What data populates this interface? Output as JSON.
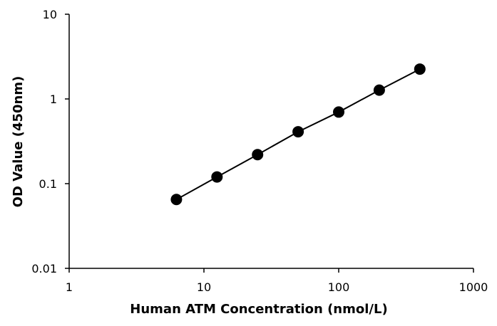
{
  "chart_data": {
    "type": "scatter",
    "title": "",
    "xlabel": "Human ATM Concentration  (nmol/L)",
    "ylabel": "OD Value (450nm)",
    "x_scale": "log",
    "y_scale": "log",
    "xlim": [
      1,
      1000
    ],
    "ylim": [
      0.01,
      10
    ],
    "x_ticks": [
      1,
      10,
      100,
      1000
    ],
    "x_tick_labels": [
      "1",
      "10",
      "100",
      "1000"
    ],
    "y_ticks": [
      0.01,
      0.1,
      1,
      10
    ],
    "y_tick_labels": [
      "0.01",
      "0.1",
      "1",
      "10"
    ],
    "grid": false,
    "legend": "none",
    "series": [
      {
        "x": [
          6.25,
          12.5,
          25,
          50,
          100,
          200,
          400
        ],
        "y": [
          0.065,
          0.12,
          0.22,
          0.41,
          0.7,
          1.27,
          2.25
        ],
        "marker": "circle",
        "line": true,
        "color": "#000000"
      }
    ]
  }
}
